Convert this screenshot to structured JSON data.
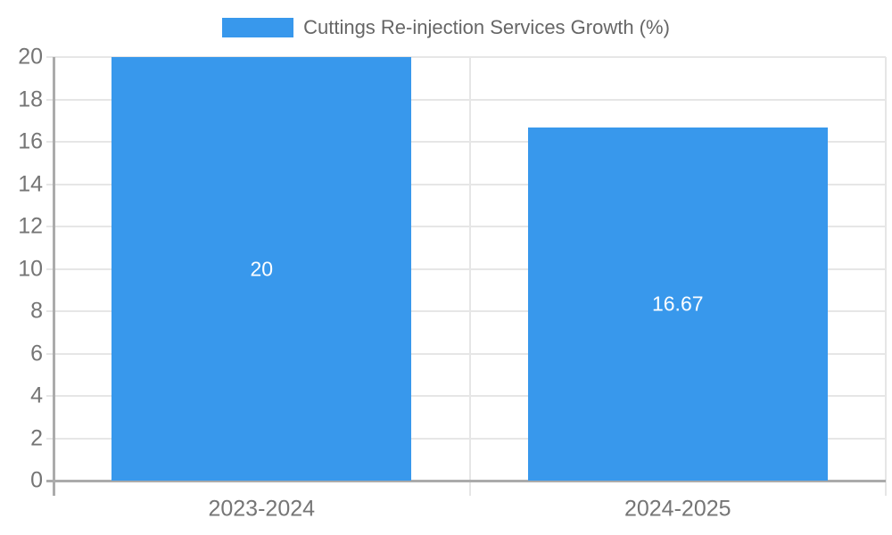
{
  "chart_data": {
    "type": "bar",
    "title": "",
    "legend": [
      "Cuttings Re-injection Services Growth (%)"
    ],
    "legend_position": "top-center",
    "categories": [
      "2023-2024",
      "2024-2025"
    ],
    "values": [
      20,
      16.67
    ],
    "value_labels": [
      "20",
      "16.67"
    ],
    "xlabel": "",
    "ylabel": "",
    "ylim": [
      0,
      20
    ],
    "yticks": [
      0,
      2,
      4,
      6,
      8,
      10,
      12,
      14,
      16,
      18,
      20
    ],
    "grid": true,
    "colors": {
      "bar": "#3898ec",
      "grid": "#e6e6e6",
      "axis": "#ababab",
      "tick_text": "#757575",
      "legend_text": "#666666",
      "value_text": "#ffffff",
      "background": "#ffffff"
    }
  }
}
